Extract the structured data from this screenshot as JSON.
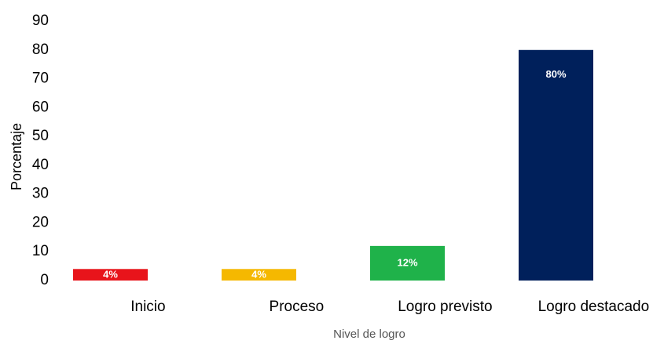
{
  "chart_data": {
    "type": "bar",
    "categories": [
      "Inicio",
      "Proceso",
      "Logro previsto",
      "Logro destacado"
    ],
    "values": [
      4,
      4,
      12,
      80
    ],
    "value_labels": [
      "4%",
      "4%",
      "12%",
      "80%"
    ],
    "colors": [
      "#e8141b",
      "#f5b800",
      "#1fb24a",
      "#00205b"
    ],
    "ylim": [
      0,
      90
    ],
    "yticks": [
      0,
      10,
      20,
      30,
      40,
      50,
      60,
      70,
      80,
      90
    ],
    "ylabel": "Porcentaje",
    "xlabel": "Nivel de logro",
    "grid": false
  }
}
